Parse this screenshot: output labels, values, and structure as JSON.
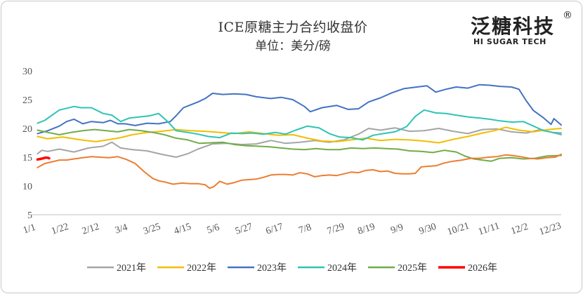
{
  "logo": {
    "main": "泛糖科技",
    "sub": "HI SUGAR TECH",
    "mark": "®"
  },
  "chart_data": {
    "type": "line",
    "title": "ICE原糖主力合约收盘价",
    "subtitle": "单位：美分/磅",
    "ylim": [
      5,
      30
    ],
    "yticks": [
      5,
      10,
      15,
      20,
      25,
      30
    ],
    "x_tick_labels": [
      "1/1",
      "1/22",
      "2/12",
      "3/4",
      "3/25",
      "4/15",
      "5/6",
      "5/27",
      "6/17",
      "7/8",
      "7/29",
      "8/19",
      "9/9",
      "9/30",
      "10/21",
      "11/11",
      "12/2",
      "12/23"
    ],
    "x_tick_days": [
      0,
      21,
      42,
      63,
      84,
      105,
      126,
      147,
      168,
      189,
      210,
      231,
      252,
      273,
      294,
      315,
      336,
      357
    ],
    "x_range_days": [
      0,
      364
    ],
    "grid": false,
    "legend_position": "bottom",
    "series": [
      {
        "name": "2021年",
        "color": "#a5a5a5",
        "points": [
          [
            5,
            15.6
          ],
          [
            8,
            16.2
          ],
          [
            12,
            16.0
          ],
          [
            20,
            16.4
          ],
          [
            30,
            15.9
          ],
          [
            40,
            16.6
          ],
          [
            50,
            16.9
          ],
          [
            56,
            17.6
          ],
          [
            62,
            16.6
          ],
          [
            70,
            16.3
          ],
          [
            80,
            16.1
          ],
          [
            90,
            15.5
          ],
          [
            100,
            15.0
          ],
          [
            108,
            15.6
          ],
          [
            115,
            16.4
          ],
          [
            125,
            17.3
          ],
          [
            135,
            17.4
          ],
          [
            145,
            17.2
          ],
          [
            155,
            17.3
          ],
          [
            165,
            17.9
          ],
          [
            175,
            17.4
          ],
          [
            185,
            17.6
          ],
          [
            195,
            17.9
          ],
          [
            205,
            17.6
          ],
          [
            215,
            18.0
          ],
          [
            225,
            19.0
          ],
          [
            232,
            20.0
          ],
          [
            240,
            19.7
          ],
          [
            250,
            20.1
          ],
          [
            260,
            19.5
          ],
          [
            270,
            19.6
          ],
          [
            280,
            20.0
          ],
          [
            290,
            19.5
          ],
          [
            300,
            19.1
          ],
          [
            310,
            19.8
          ],
          [
            320,
            19.9
          ],
          [
            330,
            19.4
          ],
          [
            340,
            19.2
          ],
          [
            350,
            19.8
          ],
          [
            364,
            18.9
          ]
        ]
      },
      {
        "name": "2022年",
        "color": "#f2be00",
        "points": [
          [
            5,
            18.6
          ],
          [
            12,
            18.2
          ],
          [
            22,
            18.5
          ],
          [
            35,
            18.0
          ],
          [
            45,
            17.7
          ],
          [
            55,
            18.1
          ],
          [
            62,
            18.4
          ],
          [
            70,
            18.9
          ],
          [
            80,
            19.3
          ],
          [
            90,
            19.5
          ],
          [
            100,
            19.8
          ],
          [
            110,
            19.6
          ],
          [
            120,
            19.5
          ],
          [
            130,
            19.3
          ],
          [
            140,
            19.1
          ],
          [
            150,
            19.4
          ],
          [
            160,
            19.1
          ],
          [
            170,
            18.8
          ],
          [
            180,
            18.9
          ],
          [
            190,
            18.3
          ],
          [
            200,
            17.8
          ],
          [
            210,
            17.7
          ],
          [
            220,
            18.0
          ],
          [
            230,
            18.3
          ],
          [
            240,
            17.9
          ],
          [
            250,
            18.1
          ],
          [
            260,
            18.0
          ],
          [
            270,
            17.8
          ],
          [
            280,
            17.5
          ],
          [
            290,
            18.1
          ],
          [
            300,
            18.6
          ],
          [
            310,
            19.2
          ],
          [
            318,
            19.6
          ],
          [
            326,
            20.2
          ],
          [
            335,
            19.7
          ],
          [
            345,
            19.4
          ],
          [
            355,
            19.8
          ],
          [
            364,
            20.0
          ]
        ]
      },
      {
        "name": "2023年",
        "color": "#4472c4",
        "points": [
          [
            5,
            19.1
          ],
          [
            12,
            19.6
          ],
          [
            20,
            20.4
          ],
          [
            25,
            21.2
          ],
          [
            30,
            21.6
          ],
          [
            36,
            20.8
          ],
          [
            42,
            21.2
          ],
          [
            50,
            21.0
          ],
          [
            55,
            21.4
          ],
          [
            60,
            20.8
          ],
          [
            65,
            20.8
          ],
          [
            72,
            20.5
          ],
          [
            80,
            20.9
          ],
          [
            88,
            20.8
          ],
          [
            96,
            21.2
          ],
          [
            100,
            22.2
          ],
          [
            105,
            23.6
          ],
          [
            110,
            24.1
          ],
          [
            115,
            24.6
          ],
          [
            120,
            25.2
          ],
          [
            125,
            26.1
          ],
          [
            132,
            25.9
          ],
          [
            140,
            26.0
          ],
          [
            148,
            25.9
          ],
          [
            155,
            25.5
          ],
          [
            165,
            25.2
          ],
          [
            172,
            25.4
          ],
          [
            180,
            25.0
          ],
          [
            188,
            23.8
          ],
          [
            192,
            22.9
          ],
          [
            200,
            23.6
          ],
          [
            210,
            24.0
          ],
          [
            218,
            23.3
          ],
          [
            225,
            23.4
          ],
          [
            232,
            24.6
          ],
          [
            240,
            25.3
          ],
          [
            248,
            26.2
          ],
          [
            256,
            26.9
          ],
          [
            265,
            27.2
          ],
          [
            272,
            27.4
          ],
          [
            278,
            26.3
          ],
          [
            285,
            26.8
          ],
          [
            292,
            27.2
          ],
          [
            300,
            27.0
          ],
          [
            308,
            27.6
          ],
          [
            315,
            27.5
          ],
          [
            322,
            27.3
          ],
          [
            330,
            27.2
          ],
          [
            335,
            26.8
          ],
          [
            340,
            24.8
          ],
          [
            345,
            23.1
          ],
          [
            352,
            21.8
          ],
          [
            357,
            20.7
          ],
          [
            359,
            21.7
          ],
          [
            364,
            20.6
          ]
        ]
      },
      {
        "name": "2024年",
        "color": "#2ec4b4",
        "points": [
          [
            5,
            20.9
          ],
          [
            10,
            21.4
          ],
          [
            15,
            22.3
          ],
          [
            20,
            23.2
          ],
          [
            25,
            23.5
          ],
          [
            30,
            23.8
          ],
          [
            35,
            23.6
          ],
          [
            42,
            23.6
          ],
          [
            50,
            22.6
          ],
          [
            56,
            22.3
          ],
          [
            62,
            21.2
          ],
          [
            68,
            21.8
          ],
          [
            75,
            22.0
          ],
          [
            82,
            22.2
          ],
          [
            88,
            22.6
          ],
          [
            95,
            21.0
          ],
          [
            100,
            19.6
          ],
          [
            108,
            19.3
          ],
          [
            115,
            19.0
          ],
          [
            122,
            18.6
          ],
          [
            130,
            18.4
          ],
          [
            138,
            19.2
          ],
          [
            145,
            19.1
          ],
          [
            152,
            19.2
          ],
          [
            160,
            19.0
          ],
          [
            168,
            19.3
          ],
          [
            175,
            19.0
          ],
          [
            182,
            19.7
          ],
          [
            190,
            20.4
          ],
          [
            198,
            20.1
          ],
          [
            205,
            19.1
          ],
          [
            212,
            18.5
          ],
          [
            220,
            18.4
          ],
          [
            228,
            18.0
          ],
          [
            235,
            18.8
          ],
          [
            242,
            19.1
          ],
          [
            250,
            19.4
          ],
          [
            258,
            20.3
          ],
          [
            264,
            22.1
          ],
          [
            270,
            23.2
          ],
          [
            278,
            22.7
          ],
          [
            285,
            22.6
          ],
          [
            292,
            22.3
          ],
          [
            300,
            22.0
          ],
          [
            308,
            21.8
          ],
          [
            315,
            21.6
          ],
          [
            322,
            21.3
          ],
          [
            330,
            21.1
          ],
          [
            338,
            21.2
          ],
          [
            345,
            20.4
          ],
          [
            352,
            19.6
          ],
          [
            358,
            19.3
          ],
          [
            364,
            19.2
          ]
        ]
      },
      {
        "name": "2025年",
        "color": "#70ad47",
        "points": [
          [
            5,
            19.7
          ],
          [
            12,
            19.3
          ],
          [
            20,
            18.9
          ],
          [
            28,
            19.3
          ],
          [
            36,
            19.6
          ],
          [
            44,
            19.8
          ],
          [
            52,
            19.6
          ],
          [
            60,
            19.4
          ],
          [
            68,
            19.8
          ],
          [
            76,
            19.6
          ],
          [
            84,
            19.3
          ],
          [
            92,
            18.9
          ],
          [
            100,
            18.3
          ],
          [
            108,
            18.0
          ],
          [
            116,
            17.4
          ],
          [
            124,
            17.5
          ],
          [
            132,
            17.6
          ],
          [
            140,
            17.2
          ],
          [
            148,
            17.0
          ],
          [
            156,
            16.9
          ],
          [
            164,
            16.8
          ],
          [
            172,
            16.6
          ],
          [
            180,
            16.4
          ],
          [
            188,
            16.3
          ],
          [
            196,
            16.5
          ],
          [
            204,
            16.3
          ],
          [
            212,
            16.3
          ],
          [
            220,
            16.6
          ],
          [
            228,
            16.5
          ],
          [
            236,
            16.6
          ],
          [
            244,
            16.5
          ],
          [
            252,
            16.4
          ],
          [
            260,
            16.1
          ],
          [
            268,
            16.0
          ],
          [
            276,
            15.8
          ],
          [
            284,
            16.2
          ],
          [
            292,
            15.9
          ],
          [
            298,
            15.2
          ],
          [
            304,
            14.7
          ],
          [
            310,
            14.5
          ],
          [
            316,
            14.3
          ],
          [
            322,
            14.8
          ],
          [
            330,
            14.9
          ],
          [
            338,
            14.7
          ],
          [
            346,
            14.8
          ],
          [
            354,
            15.2
          ],
          [
            364,
            15.3
          ]
        ]
      },
      {
        "name": "2026年",
        "color": "#ff0000",
        "points": [
          [
            5,
            14.6
          ],
          [
            7,
            14.7
          ],
          [
            9,
            14.8
          ],
          [
            10,
            14.9
          ],
          [
            12,
            14.9
          ],
          [
            13,
            14.8
          ]
        ]
      },
      {
        "name": "",
        "color": "#ed7d31",
        "points": [
          [
            5,
            13.2
          ],
          [
            10,
            13.9
          ],
          [
            15,
            14.2
          ],
          [
            20,
            14.5
          ],
          [
            25,
            14.5
          ],
          [
            30,
            14.7
          ],
          [
            36,
            14.9
          ],
          [
            42,
            15.1
          ],
          [
            48,
            15.0
          ],
          [
            54,
            14.9
          ],
          [
            60,
            15.1
          ],
          [
            66,
            14.6
          ],
          [
            72,
            13.9
          ],
          [
            78,
            12.5
          ],
          [
            84,
            11.3
          ],
          [
            88,
            10.9
          ],
          [
            92,
            10.7
          ],
          [
            98,
            10.3
          ],
          [
            104,
            10.5
          ],
          [
            110,
            10.4
          ],
          [
            115,
            10.4
          ],
          [
            120,
            10.2
          ],
          [
            123,
            9.6
          ],
          [
            126,
            9.9
          ],
          [
            130,
            10.8
          ],
          [
            135,
            10.3
          ],
          [
            140,
            10.6
          ],
          [
            145,
            11.0
          ],
          [
            150,
            11.1
          ],
          [
            155,
            11.2
          ],
          [
            160,
            11.5
          ],
          [
            165,
            11.9
          ],
          [
            170,
            12.0
          ],
          [
            175,
            12.0
          ],
          [
            180,
            11.9
          ],
          [
            185,
            12.3
          ],
          [
            190,
            12.1
          ],
          [
            195,
            11.6
          ],
          [
            200,
            11.8
          ],
          [
            205,
            11.9
          ],
          [
            210,
            11.8
          ],
          [
            215,
            12.1
          ],
          [
            220,
            12.4
          ],
          [
            225,
            12.3
          ],
          [
            230,
            12.7
          ],
          [
            235,
            12.8
          ],
          [
            240,
            12.5
          ],
          [
            245,
            12.6
          ],
          [
            250,
            12.2
          ],
          [
            255,
            12.1
          ],
          [
            260,
            12.1
          ],
          [
            264,
            12.2
          ],
          [
            268,
            13.3
          ],
          [
            272,
            13.4
          ],
          [
            278,
            13.5
          ],
          [
            284,
            14.0
          ],
          [
            290,
            14.3
          ],
          [
            296,
            14.5
          ],
          [
            302,
            14.8
          ],
          [
            308,
            14.8
          ],
          [
            314,
            15.0
          ],
          [
            320,
            15.1
          ],
          [
            326,
            15.4
          ],
          [
            330,
            15.3
          ],
          [
            336,
            15.1
          ],
          [
            342,
            14.8
          ],
          [
            348,
            14.7
          ],
          [
            354,
            14.9
          ],
          [
            360,
            15.0
          ],
          [
            364,
            15.5
          ]
        ]
      }
    ]
  }
}
